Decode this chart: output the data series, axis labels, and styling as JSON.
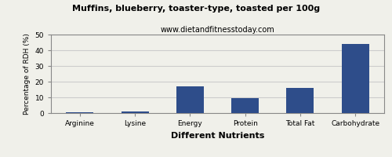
{
  "title": "Muffins, blueberry, toaster-type, toasted per 100g",
  "subtitle": "www.dietandfitnesstoday.com",
  "xlabel": "Different Nutrients",
  "ylabel": "Percentage of RDH (%)",
  "categories": [
    "Arginine",
    "Lysine",
    "Energy",
    "Protein",
    "Total Fat",
    "Carbohydrate"
  ],
  "values": [
    0.3,
    1.0,
    17.2,
    9.3,
    16.0,
    44.0
  ],
  "bar_color": "#2e4d8a",
  "ylim": [
    0,
    50
  ],
  "yticks": [
    0,
    10,
    20,
    30,
    40,
    50
  ],
  "grid_color": "#cccccc",
  "background_color": "#f0f0ea",
  "title_fontsize": 8,
  "subtitle_fontsize": 7,
  "xlabel_fontsize": 8,
  "ylabel_fontsize": 6.5,
  "tick_fontsize": 6.5
}
